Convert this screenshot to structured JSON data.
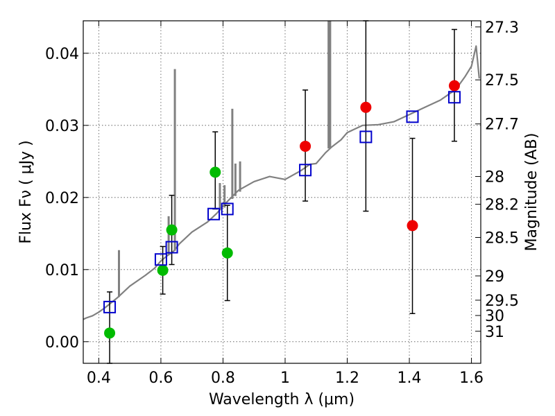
{
  "chart_data": {
    "type": "scatter",
    "title": "",
    "xlabel": "Wavelength  λ (μm)",
    "ylabel": "Flux  Fν  ( μJy )",
    "y2label": "Magnitude (AB)",
    "xlim": [
      0.35,
      1.63
    ],
    "ylim": [
      -0.003,
      0.0445
    ],
    "grid": true,
    "x_ticks": [
      0.4,
      0.6,
      0.8,
      1.0,
      1.2,
      1.4,
      1.6
    ],
    "x_tick_labels": [
      "0.4",
      "0.6",
      "0.8",
      "1",
      "1.2",
      "1.4",
      "1.6"
    ],
    "y_ticks": [
      0.0,
      0.01,
      0.02,
      0.03,
      0.04
    ],
    "y_tick_labels": [
      "0.00",
      "0.01",
      "0.02",
      "0.03",
      "0.04"
    ],
    "mag_ticks": [
      27.3,
      27.5,
      27.7,
      28,
      28.2,
      28.5,
      29,
      29.5,
      30,
      31
    ],
    "mag_tick_labels": [
      "27.3",
      "27.5",
      "27.7",
      "28",
      "28.2",
      "28.5",
      "29",
      "29.5",
      "30",
      "31"
    ],
    "colors": {
      "model": "#808080",
      "green": "#00bb00",
      "red": "#ee0000",
      "square": "#0000cc",
      "errorbar": "#000000"
    },
    "series": [
      {
        "name": "green-points",
        "marker": "circle",
        "x": [
          0.435,
          0.606,
          0.635,
          0.775,
          0.814
        ],
        "y": [
          0.0012,
          0.0099,
          0.0155,
          0.0235,
          0.0123
        ],
        "yerr_low": [
          0.0055,
          0.0033,
          0.0048,
          0.0051,
          0.0066
        ],
        "yerr_high": [
          0.0057,
          0.0033,
          0.0048,
          0.0056,
          0.0066
        ]
      },
      {
        "name": "red-points",
        "marker": "circle",
        "x": [
          1.065,
          1.26,
          1.41,
          1.545
        ],
        "y": [
          0.0271,
          0.0325,
          0.0161,
          0.0355
        ],
        "yerr_low": [
          0.0076,
          0.0144,
          0.0122,
          0.0077
        ],
        "yerr_high": [
          0.0078,
          0.0152,
          0.0121,
          0.0078
        ]
      },
      {
        "name": "model-photometry",
        "marker": "square",
        "x": [
          0.435,
          0.6,
          0.635,
          0.77,
          0.814,
          1.065,
          1.26,
          1.41,
          1.545
        ],
        "y": [
          0.0048,
          0.0114,
          0.0131,
          0.0177,
          0.0184,
          0.0238,
          0.0284,
          0.0312,
          0.0339
        ]
      },
      {
        "name": "model-spectrum",
        "marker": "line",
        "x": [
          0.35,
          0.36,
          0.38,
          0.4,
          0.42,
          0.44,
          0.46,
          0.5,
          0.55,
          0.58,
          0.6,
          0.62,
          0.64,
          0.66,
          0.7,
          0.75,
          0.78,
          0.8,
          0.82,
          0.85,
          0.9,
          0.95,
          1.0,
          1.05,
          1.08,
          1.1,
          1.13,
          1.15,
          1.18,
          1.2,
          1.25,
          1.3,
          1.35,
          1.4,
          1.45,
          1.5,
          1.55,
          1.58,
          1.6,
          1.615,
          1.625
        ],
        "y": [
          0.0031,
          0.0033,
          0.0036,
          0.0041,
          0.0047,
          0.0054,
          0.0061,
          0.0077,
          0.0092,
          0.0102,
          0.0112,
          0.0119,
          0.0125,
          0.0136,
          0.0152,
          0.0166,
          0.0178,
          0.0188,
          0.0197,
          0.021,
          0.0222,
          0.0229,
          0.0225,
          0.0237,
          0.0246,
          0.0247,
          0.0262,
          0.027,
          0.028,
          0.029,
          0.03,
          0.0301,
          0.0305,
          0.0315,
          0.0325,
          0.0335,
          0.035,
          0.0368,
          0.0382,
          0.041,
          0.0365
        ]
      },
      {
        "name": "model-emission-lines",
        "marker": "spike",
        "x": [
          0.465,
          0.625,
          0.645,
          0.79,
          0.805,
          0.83,
          0.84,
          0.855,
          1.14,
          1.145
        ],
        "y_base": [
          0.0062,
          0.012,
          0.0126,
          0.0184,
          0.0186,
          0.0198,
          0.0202,
          0.0208,
          0.0268,
          0.0269
        ],
        "y_peak": [
          0.0127,
          0.0174,
          0.0378,
          0.022,
          0.0217,
          0.0323,
          0.0247,
          0.025,
          0.0445,
          0.0445
        ]
      }
    ]
  }
}
